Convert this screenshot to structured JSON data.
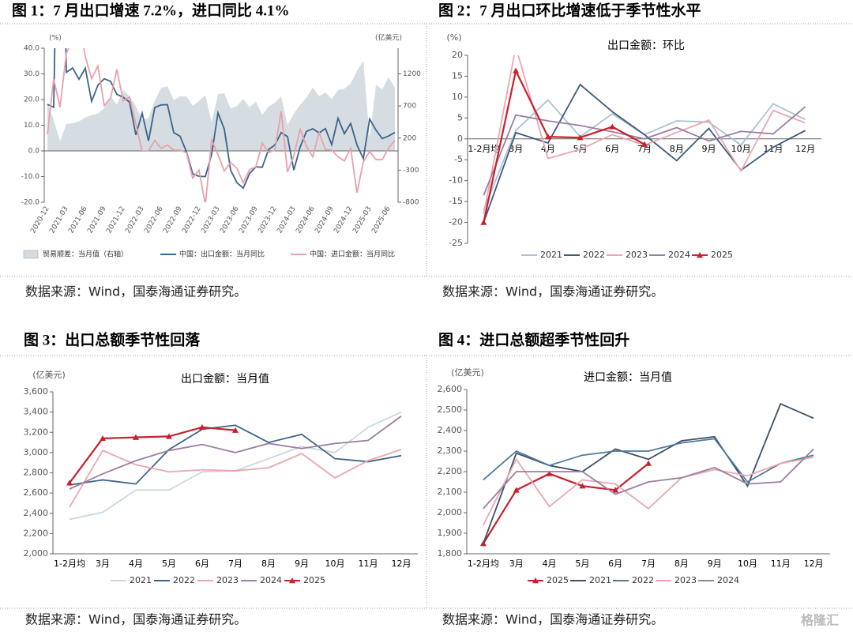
{
  "chart_data": [
    {
      "type": "line",
      "title": "图 1：7 月出口增速 7.2%，进口同比 4.1%",
      "y_label": "(%)",
      "y2_label": "(亿美元)",
      "source": "数据来源：Wind，国泰海通证券研究。",
      "categories": [
        "2020-12",
        null,
        null,
        "2021-03",
        null,
        null,
        "2021-06",
        null,
        null,
        "2021-09",
        null,
        null,
        "2021-12",
        null,
        null,
        "2022-03",
        null,
        null,
        "2022-06",
        null,
        null,
        "2022-09",
        null,
        null,
        "2022-12",
        null,
        null,
        "2023-03",
        null,
        null,
        "2023-06",
        null,
        null,
        "2023-09",
        null,
        null,
        "2023-12",
        null,
        null,
        "2024-03",
        null,
        null,
        "2024-06",
        null,
        null,
        "2024-09",
        null,
        null,
        "2024-12",
        null,
        null,
        "2025-03",
        null,
        null,
        "2025-06",
        null
      ],
      "series": [
        {
          "name": "贸易顺差：当月值（右轴）",
          "type": "area",
          "axis": "y2",
          "color": "#d5dde2",
          "values": [
            750,
            480,
            150,
            420,
            430,
            460,
            520,
            560,
            580,
            670,
            850,
            720,
            950,
            850,
            700,
            480,
            510,
            780,
            980,
            1010,
            790,
            850,
            850,
            700,
            780,
            870,
            450,
            880,
            900,
            660,
            700,
            810,
            680,
            770,
            560,
            690,
            750,
            850,
            400,
            580,
            720,
            830,
            990,
            850,
            910,
            810,
            950,
            970,
            1050,
            1250,
            1400,
            200,
            1030,
            960,
            1150,
            980
          ]
        },
        {
          "name": "中国：出口金额：当月同比",
          "color": "#3d6489",
          "values": [
            18.1,
            17.0,
            154.9,
            30.6,
            32.3,
            27.9,
            32.2,
            19.3,
            25.6,
            28.1,
            27.1,
            22.0,
            20.9,
            19.0,
            6.2,
            14.7,
            3.9,
            16.9,
            17.9,
            18.0,
            7.1,
            5.7,
            -0.3,
            -8.9,
            -9.9,
            -10.0,
            -1.3,
            14.8,
            8.5,
            -7.5,
            -12.4,
            -14.5,
            -8.8,
            -6.2,
            -6.4,
            0.5,
            2.3,
            7.1,
            5.6,
            -7.5,
            1.5,
            7.6,
            8.6,
            7.0,
            8.7,
            2.4,
            12.7,
            6.7,
            10.7,
            2.3,
            -3.0,
            12.4,
            8.1,
            4.8,
            5.8,
            7.2
          ]
        },
        {
          "name": "中国：进口金额：当月同比",
          "color": "#e9a0ac",
          "values": [
            6.5,
            28.0,
            17.0,
            38.1,
            43.1,
            51.1,
            36.7,
            28.1,
            33.1,
            17.6,
            20.6,
            31.7,
            19.5,
            21.0,
            10.4,
            -0.1,
            0.0,
            4.1,
            1.0,
            2.3,
            0.3,
            0.3,
            -0.7,
            -10.6,
            -7.5,
            -21.0,
            4.2,
            -1.4,
            -7.9,
            -4.5,
            -6.8,
            -12.4,
            -7.3,
            -6.2,
            3.0,
            -0.6,
            0.2,
            15.5,
            -8.2,
            -1.9,
            8.4,
            1.8,
            -2.3,
            7.2,
            0.5,
            0.3,
            -2.3,
            -3.9,
            1.0,
            -16.3,
            -4.3,
            -0.2,
            -3.4,
            -3.4,
            1.1,
            4.1
          ]
        }
      ],
      "ylim": [
        -20,
        40
      ],
      "yticks": [
        {
          "value": -20,
          "label": "-20.0"
        },
        {
          "value": -10,
          "label": "-10.0"
        },
        {
          "value": 0,
          "label": "0.0"
        },
        {
          "value": 10,
          "label": "10.0"
        },
        {
          "value": 20,
          "label": "20.0"
        },
        {
          "value": 30,
          "label": "30.0"
        },
        {
          "value": 40,
          "label": "40.0"
        }
      ],
      "y2lim": [
        -800,
        1600
      ],
      "y2ticks": [
        -800,
        -300,
        200,
        700,
        1200
      ]
    },
    {
      "type": "line",
      "title": "图 2：7 月出口环比增速低于季节性水平",
      "subtitle": "出口金额：环比",
      "y_label": "(%)",
      "source": "数据来源：Wind，国泰海通证券研究。",
      "categories": [
        "1-2月均",
        "3月",
        "4月",
        "5月",
        "6月",
        "7月",
        "8月",
        "9月",
        "10月",
        "11月",
        "12月"
      ],
      "series": [
        {
          "name": "2021",
          "color": "#aac2d2",
          "values": [
            -17,
            2,
            9.3,
            0.5,
            6,
            1,
            4.3,
            4,
            -1.5,
            8.4,
            4.6
          ]
        },
        {
          "name": "2022",
          "color": "#3b5b7a",
          "values": [
            -20,
            1.5,
            -1,
            13,
            6.5,
            1,
            -5.2,
            2.5,
            -7.5,
            -2,
            2
          ]
        },
        {
          "name": "2023",
          "color": "#eba6b1",
          "values": [
            -18,
            22,
            -4.7,
            -2.5,
            1,
            -1.5,
            1.5,
            4.5,
            -7.7,
            6.8,
            3.8
          ]
        },
        {
          "name": "2024",
          "color": "#9a7fa0",
          "values": [
            -13.5,
            5.7,
            4.3,
            3.2,
            1.7,
            0,
            2.7,
            -0.5,
            1.8,
            1.2,
            7.7
          ]
        },
        {
          "name": "2025",
          "color": "#c8202c",
          "marker": "triangle",
          "values": [
            -20,
            16.3,
            0.5,
            0.3,
            2.9,
            -1.3,
            null,
            null,
            null,
            null,
            null
          ]
        }
      ],
      "ylim": [
        -25,
        20
      ],
      "yticks": [
        -25,
        -20,
        -15,
        -10,
        -5,
        0,
        5,
        10,
        15,
        20
      ]
    },
    {
      "type": "line",
      "title": "图 3：出口总额季节性回落",
      "subtitle": "出口金额：当月值",
      "y_label": "(亿美元)",
      "source": "数据来源：Wind，国泰海通证券研究。",
      "categories": [
        "1-2月均",
        "3月",
        "4月",
        "5月",
        "6月",
        "7月",
        "8月",
        "9月",
        "10月",
        "11月",
        "12月"
      ],
      "series": [
        {
          "name": "2021",
          "color": "#c9d7e2",
          "values": [
            2340,
            2410,
            2630,
            2630,
            2810,
            2820,
            2940,
            3060,
            3000,
            3250,
            3400
          ]
        },
        {
          "name": "2022",
          "color": "#3d6489",
          "values": [
            2680,
            2730,
            2690,
            3030,
            3230,
            3270,
            3100,
            3180,
            2940,
            2910,
            2970
          ]
        },
        {
          "name": "2023",
          "color": "#eba6b1",
          "values": [
            2460,
            3020,
            2880,
            2810,
            2830,
            2820,
            2850,
            2990,
            2750,
            2920,
            3030
          ]
        },
        {
          "name": "2024",
          "color": "#9a7fa0",
          "values": [
            2640,
            2790,
            2920,
            3020,
            3080,
            3000,
            3090,
            3040,
            3090,
            3120,
            3360
          ]
        },
        {
          "name": "2025",
          "color": "#c8202c",
          "marker": "triangle",
          "values": [
            2700,
            3140,
            3150,
            3160,
            3250,
            3220,
            null,
            null,
            null,
            null,
            null
          ]
        }
      ],
      "ylim": [
        2000,
        3600
      ],
      "yticks": [
        {
          "value": 2000,
          "label": "2,000"
        },
        {
          "value": 2200,
          "label": "2,200"
        },
        {
          "value": 2400,
          "label": "2,400"
        },
        {
          "value": 2600,
          "label": "2,600"
        },
        {
          "value": 2800,
          "label": "2,800"
        },
        {
          "value": 3000,
          "label": "3,000"
        },
        {
          "value": 3200,
          "label": "3,200"
        },
        {
          "value": 3400,
          "label": "3,400"
        },
        {
          "value": 3600,
          "label": "3,600"
        }
      ]
    },
    {
      "type": "line",
      "title": "图 4：进口总额超季节性回升",
      "subtitle": "进口金额：当月值",
      "y_label": "(亿美元)",
      "source": "数据来源：Wind，国泰海通证券研究。",
      "categories": [
        "1-2月均",
        "3月",
        "4月",
        "5月",
        "6月",
        "7月",
        "8月",
        "9月",
        "10月",
        "11月",
        "12月"
      ],
      "series": [
        {
          "name": "2025",
          "color": "#c8202c",
          "marker": "triangle",
          "values": [
            1850,
            2110,
            2190,
            2130,
            2110,
            2240,
            null,
            null,
            null,
            null,
            null
          ]
        },
        {
          "name": "2021",
          "color": "#3b4f66",
          "values": [
            1850,
            2290,
            2230,
            2200,
            2310,
            2260,
            2350,
            2370,
            2130,
            2530,
            2460
          ]
        },
        {
          "name": "2022",
          "color": "#4f7a9c",
          "values": [
            2160,
            2300,
            2230,
            2280,
            2300,
            2300,
            2340,
            2360,
            2150,
            2240,
            2280
          ]
        },
        {
          "name": "2023",
          "color": "#eba6b1",
          "values": [
            1940,
            2260,
            2030,
            2160,
            2140,
            2020,
            2170,
            2210,
            2180,
            2240,
            2270
          ]
        },
        {
          "name": "2024",
          "color": "#9a7fa0",
          "values": [
            2020,
            2200,
            2200,
            2200,
            2090,
            2150,
            2170,
            2220,
            2140,
            2150,
            2310
          ]
        }
      ],
      "ylim": [
        1800,
        2600
      ],
      "yticks": [
        {
          "value": 1800,
          "label": "1,800"
        },
        {
          "value": 1900,
          "label": "1,900"
        },
        {
          "value": 2000,
          "label": "2,000"
        },
        {
          "value": 2100,
          "label": "2,100"
        },
        {
          "value": 2200,
          "label": "2,200"
        },
        {
          "value": 2300,
          "label": "2,300"
        },
        {
          "value": 2400,
          "label": "2,400"
        },
        {
          "value": 2500,
          "label": "2,500"
        },
        {
          "value": 2600,
          "label": "2,600"
        }
      ]
    }
  ],
  "watermark": "格隆汇"
}
